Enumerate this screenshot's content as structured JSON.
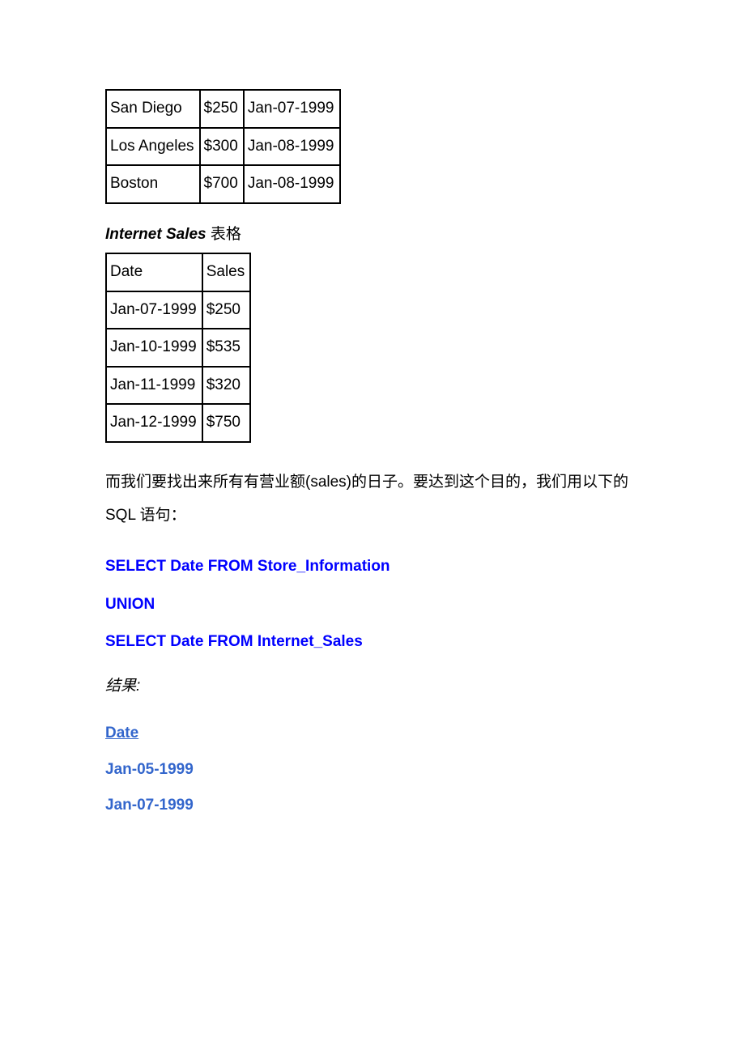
{
  "store_table": {
    "rows": [
      [
        "San Diego",
        "$250",
        "Jan-07-1999"
      ],
      [
        "Los Angeles",
        "$300",
        "Jan-08-1999"
      ],
      [
        "Boston",
        "$700",
        "Jan-08-1999"
      ]
    ]
  },
  "internet_section": {
    "title_bold": "Internet Sales",
    "title_suffix": " 表格"
  },
  "internet_table": {
    "rows": [
      [
        "Date",
        "Sales"
      ],
      [
        "Jan-07-1999",
        "$250"
      ],
      [
        "Jan-10-1999",
        "$535"
      ],
      [
        "Jan-11-1999",
        "$320"
      ],
      [
        "Jan-12-1999",
        "$750"
      ]
    ]
  },
  "body_text": "而我们要找出来所有有营业额(sales)的日子。要达到这个目的，我们用以下的 SQL 语句：",
  "sql": {
    "line1": "SELECT Date FROM Store_Information",
    "line2": "UNION",
    "line3": "SELECT Date FROM Internet_Sales"
  },
  "result_label": "结果:",
  "result": {
    "header": "Date",
    "rows": [
      "Jan-05-1999",
      "Jan-07-1999"
    ]
  },
  "colors": {
    "sql": "#0000ff",
    "result": "#3366cc",
    "text": "#000000",
    "border": "#000000",
    "background": "#ffffff"
  }
}
